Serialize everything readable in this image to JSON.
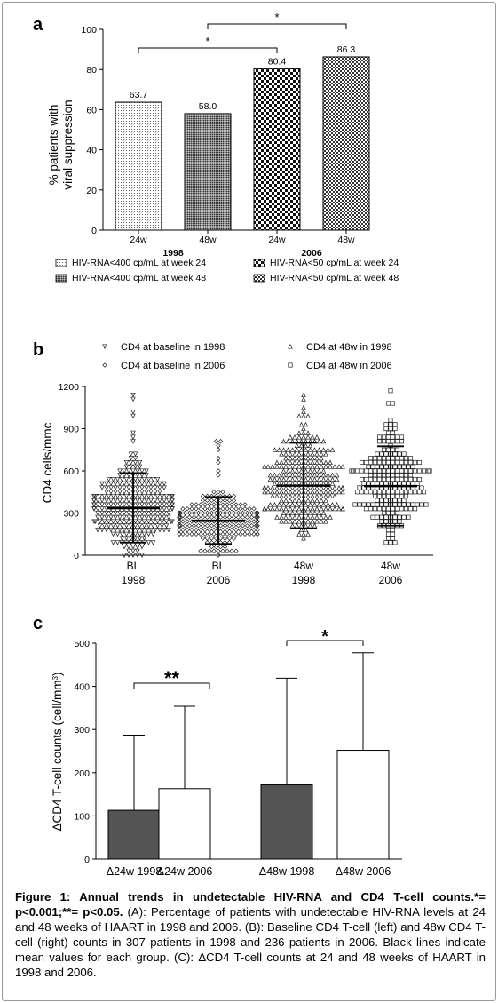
{
  "chart_data": [
    {
      "type": "bar",
      "panel_label": "a",
      "ylabel_line1": "% patients with",
      "ylabel_line2": "viral suppression",
      "ylim": [
        0,
        100
      ],
      "yticks": [
        "0",
        "20",
        "40",
        "60",
        "80",
        "100"
      ],
      "categories": [
        "24w",
        "48w",
        "24w",
        "48w"
      ],
      "groups": [
        "1998",
        "2006"
      ],
      "values": [
        63.7,
        58.0,
        80.4,
        86.3
      ],
      "value_labels": [
        "63.7",
        "58.0",
        "80.4",
        "86.3"
      ],
      "significance": [
        "*",
        "*"
      ],
      "legend": [
        "HIV-RNA<400 cp/mL at week 24",
        "HIV-RNA<400 cp/mL at week 48",
        "HIV-RNA<50 cp/mL at week 24",
        "HIV-RNA<50 cp/mL at week 48"
      ],
      "grid": false
    },
    {
      "type": "scatter",
      "panel_label": "b",
      "ylabel": "CD4 cells/mmc",
      "ylim": [
        0,
        1200
      ],
      "yticks": [
        "0",
        "300",
        "600",
        "900",
        "1200"
      ],
      "categories": [
        "BL",
        "BL",
        "48w",
        "48w"
      ],
      "groups": [
        "1998",
        "2006",
        "1998",
        "2006"
      ],
      "legend": [
        "CD4 at baseline in 1998",
        "CD4 at baseline in 2006",
        "CD4 at 48w in 1998",
        "CD4 at 48w in 2006"
      ],
      "means": [
        335,
        245,
        495,
        492
      ],
      "error_low": [
        90,
        80,
        190,
        210
      ],
      "error_high": [
        585,
        415,
        800,
        775
      ],
      "spread": [
        [
          0,
          1160
        ],
        [
          0,
          900
        ],
        [
          30,
          1180
        ],
        [
          20,
          1175
        ]
      ],
      "point_counts": [
        307,
        236,
        307,
        236
      ],
      "grid": false
    },
    {
      "type": "bar",
      "panel_label": "c",
      "ylabel": "ΔCD4 T-cell counts (cell/mm",
      "ylabel_sup": "3",
      "ylabel_end": ")",
      "ylim": [
        0,
        500
      ],
      "yticks": [
        "0",
        "100",
        "200",
        "300",
        "400",
        "500"
      ],
      "categories": [
        "Δ24w 1998",
        "Δ24w  2006",
        "Δ48w 1998",
        "Δ48w 2006"
      ],
      "values": [
        113,
        163,
        172,
        252
      ],
      "error_high": [
        287,
        354,
        419,
        478
      ],
      "colors": [
        "#545454",
        "#ffffff",
        "#545454",
        "#ffffff"
      ],
      "significance": [
        "**",
        "*"
      ],
      "grid": false
    }
  ],
  "caption": {
    "bold": "Figure 1: Annual trends in undetectable HIV-RNA and CD4 T-cell counts.",
    "bold2": "*= p<0.001;**= p<0.05.",
    "text": " (A): Percentage of patients with undetectable HIV-RNA levels at 24 and 48 weeks of HAART in 1998 and 2006. (B): Baseline CD4 T-cell (left) and 48w CD4 T-cell (right) counts in 307 patients in 1998 and 236 patients in 2006. Black lines indicate mean values for each group. (C): ΔCD4 T-cell counts at 24 and 48 weeks of HAART in 1998 and 2006."
  }
}
